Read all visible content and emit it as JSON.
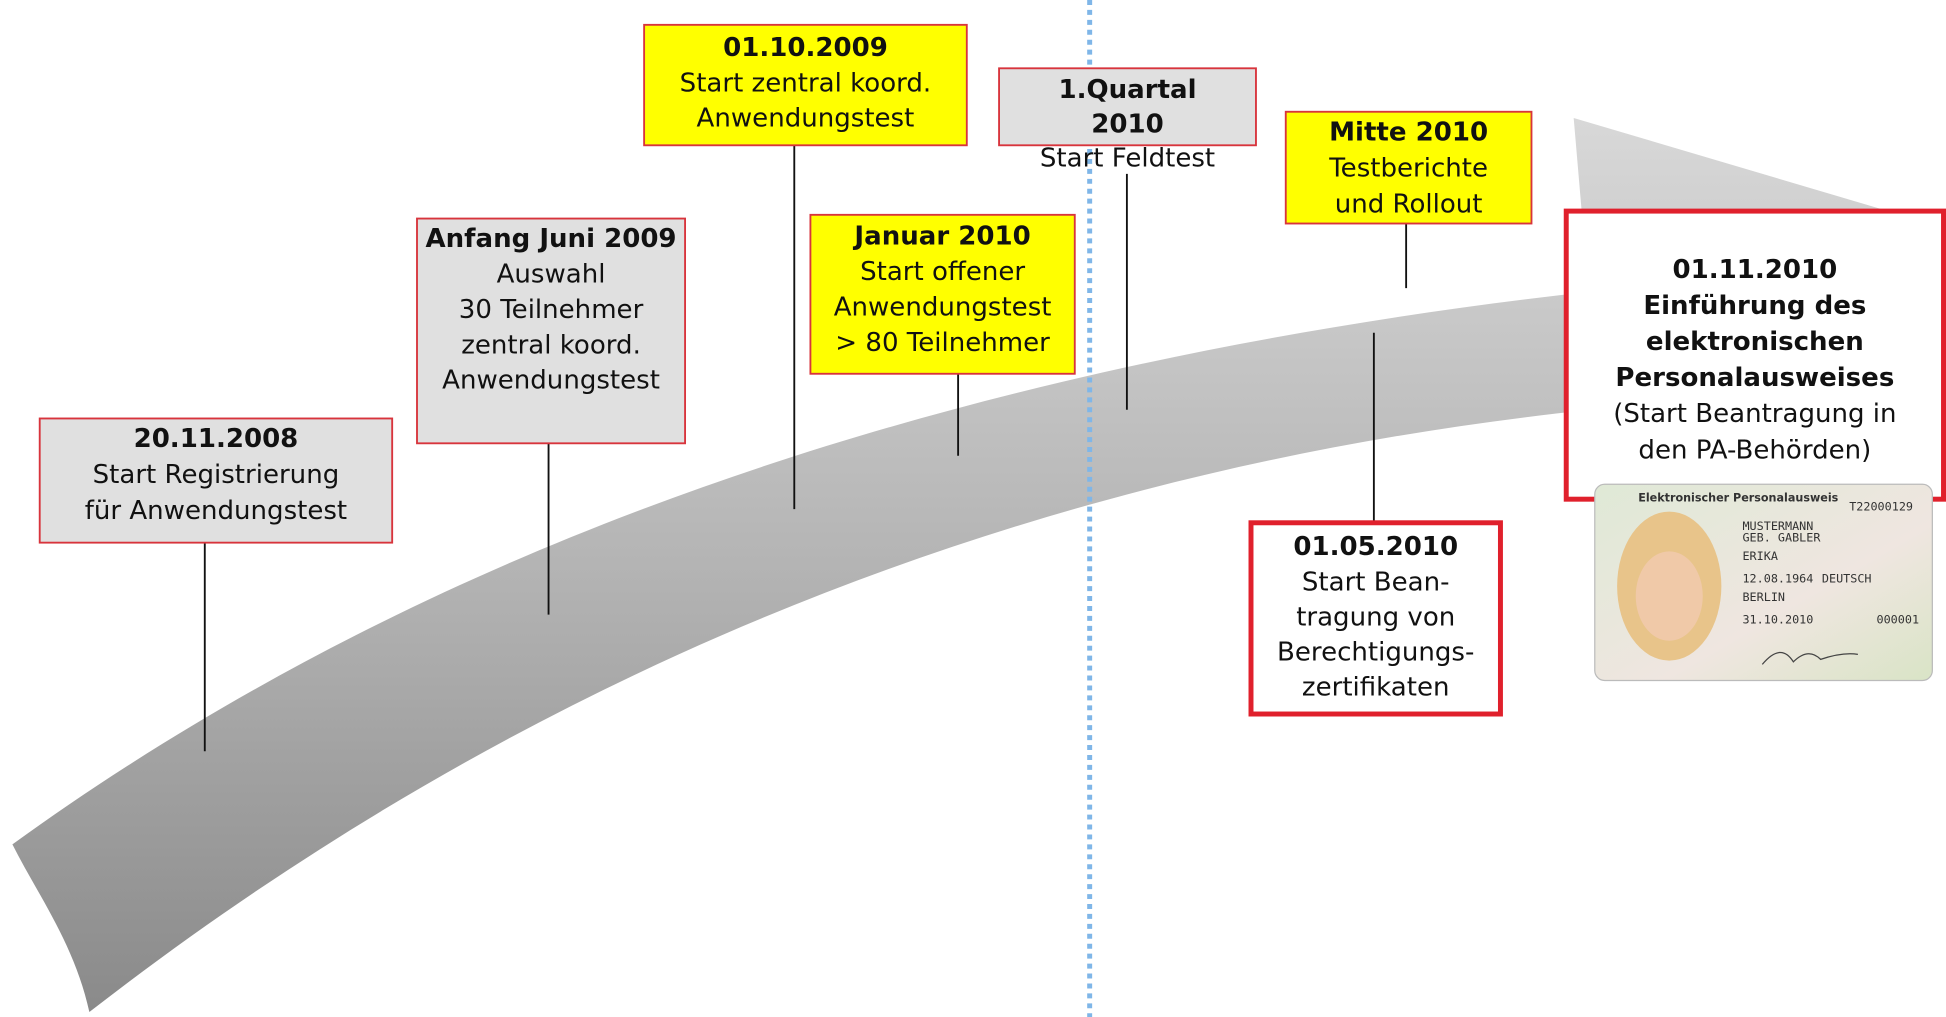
{
  "milestones": [
    {
      "title": [
        "20.11.2008"
      ],
      "text": [
        "Start Registrierung",
        "für Anwendungstest"
      ]
    },
    {
      "title": [
        "Anfang Juni 2009"
      ],
      "text": [
        "Auswahl",
        "30 Teilnehmer",
        "zentral koord.",
        "Anwendungstest"
      ]
    },
    {
      "title": [
        "01.10.2009"
      ],
      "text": [
        "Start zentral koord.",
        "Anwendungstest"
      ]
    },
    {
      "title": [
        "Januar 2010"
      ],
      "text": [
        "Start offener",
        "Anwendungstest",
        "> 80 Teilnehmer"
      ]
    },
    {
      "title": [
        "1.Quartal",
        "2010"
      ],
      "text": [
        "Start Feldtest"
      ]
    },
    {
      "title": [
        "Mitte 2010"
      ],
      "text": [
        "Testberichte",
        "und Rollout"
      ]
    },
    {
      "title": [
        "01.05.2010"
      ],
      "text": [
        "Start Bean-",
        "tragung von",
        "Berechtigungs-",
        "zertifikaten"
      ]
    },
    {
      "title": [
        "01.11.2010",
        "Einführung des",
        "elektronischen",
        "Personalausweises"
      ],
      "text": [
        "(Start Beantragung in",
        "den PA-Behörden)"
      ]
    }
  ],
  "id_card": {
    "heading": "Elektronischer Personalausweis",
    "number": "T22000129",
    "surname": "MUSTERMANN",
    "birth_name": "GEB. GABLER",
    "given_name": "ERIKA",
    "birth_date": "12.08.1964",
    "nationality": "DEUTSCH",
    "birth_place": "BERLIN",
    "expiry": "31.10.2010",
    "access_no": "000001"
  }
}
